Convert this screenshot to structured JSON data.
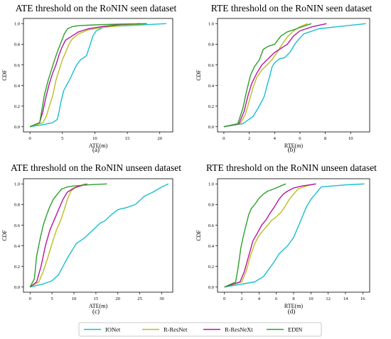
{
  "colors": {
    "IONet": "#17becf",
    "R-ResNet": "#bcbd22",
    "R-ResNeXt": "#b5179e",
    "EDIN": "#2ca02c"
  },
  "legend": {
    "placement": "bottom-center",
    "entries": [
      "IONet",
      "R-ResNet",
      "R-ResNeXt",
      "EDIN"
    ]
  },
  "chart_data": [
    {
      "type": "line",
      "title": "ATE threshold on the RoNIN seen dataset",
      "caption": "(a)",
      "xlabel": "ATE(m)",
      "ylabel": "CDF",
      "xlim": [
        -1,
        22
      ],
      "ylim": [
        -0.05,
        1.05
      ],
      "xticks": [
        0,
        5,
        10,
        15,
        20
      ],
      "yticks": [
        0.0,
        0.2,
        0.4,
        0.6,
        0.8,
        1.0
      ],
      "series": [
        {
          "name": "IONet",
          "x": [
            0,
            2,
            3.5,
            4.2,
            4.5,
            4.8,
            5.2,
            5.8,
            6.3,
            6.8,
            7.2,
            7.8,
            8.3,
            8.7,
            9.2,
            9.7,
            10.2,
            11.5,
            13,
            15,
            18,
            21
          ],
          "y": [
            0,
            0.02,
            0.04,
            0.07,
            0.15,
            0.25,
            0.35,
            0.42,
            0.48,
            0.55,
            0.6,
            0.65,
            0.67,
            0.69,
            0.78,
            0.88,
            0.93,
            0.97,
            0.975,
            0.98,
            0.99,
            1.0
          ]
        },
        {
          "name": "R-ResNet",
          "x": [
            0,
            2,
            2.5,
            3,
            3.5,
            4,
            4.5,
            5,
            5.5,
            6,
            6.5,
            7.5,
            9,
            11,
            14,
            18
          ],
          "y": [
            0,
            0.04,
            0.1,
            0.2,
            0.3,
            0.45,
            0.55,
            0.65,
            0.72,
            0.8,
            0.85,
            0.9,
            0.94,
            0.96,
            0.98,
            1.0
          ]
        },
        {
          "name": "R-ResNeXt",
          "x": [
            0,
            1.5,
            2,
            2.5,
            3,
            3.5,
            4,
            4.5,
            5,
            5.5,
            6.5,
            7.5,
            9,
            11,
            14,
            17
          ],
          "y": [
            0,
            0.04,
            0.15,
            0.3,
            0.42,
            0.52,
            0.6,
            0.7,
            0.78,
            0.84,
            0.88,
            0.92,
            0.95,
            0.97,
            0.99,
            1.0
          ]
        },
        {
          "name": "EDIN",
          "x": [
            0,
            1.5,
            1.8,
            2.2,
            2.8,
            3.3,
            3.8,
            4.3,
            4.8,
            5.3,
            5.8,
            6.5,
            7.5,
            9,
            11,
            14,
            18
          ],
          "y": [
            0,
            0.04,
            0.15,
            0.3,
            0.45,
            0.55,
            0.65,
            0.74,
            0.82,
            0.9,
            0.95,
            0.97,
            0.98,
            0.985,
            0.99,
            0.995,
            1.0
          ]
        }
      ]
    },
    {
      "type": "line",
      "title": "RTE threshold on the RoNIN seen dataset",
      "caption": "(b)",
      "xlabel": "RTE(m)",
      "ylabel": "CDF",
      "xlim": [
        -0.5,
        11.5
      ],
      "ylim": [
        -0.05,
        1.05
      ],
      "xticks": [
        0,
        2,
        4,
        6,
        8,
        10
      ],
      "yticks": [
        0.0,
        0.2,
        0.4,
        0.6,
        0.8,
        1.0
      ],
      "series": [
        {
          "name": "IONet",
          "x": [
            0,
            1.5,
            2.3,
            2.7,
            3,
            3.2,
            3.4,
            3.6,
            3.8,
            4,
            4.4,
            4.8,
            5.2,
            5.7,
            6.3,
            7.5,
            9,
            11.2
          ],
          "y": [
            0,
            0.03,
            0.1,
            0.18,
            0.25,
            0.3,
            0.4,
            0.48,
            0.58,
            0.62,
            0.66,
            0.67,
            0.72,
            0.82,
            0.9,
            0.95,
            0.97,
            1.0
          ]
        },
        {
          "name": "R-ResNet",
          "x": [
            0,
            1.3,
            1.7,
            2,
            2.3,
            2.6,
            3,
            3.4,
            3.8,
            4.2,
            4.6,
            5,
            5.5,
            6,
            6.6
          ],
          "y": [
            0,
            0.03,
            0.12,
            0.25,
            0.38,
            0.48,
            0.55,
            0.6,
            0.65,
            0.72,
            0.8,
            0.87,
            0.93,
            0.97,
            1.0
          ]
        },
        {
          "name": "R-ResNeXt",
          "x": [
            0,
            1.2,
            1.6,
            1.9,
            2.2,
            2.6,
            3,
            3.5,
            4,
            4.5,
            5,
            5.5,
            6,
            7,
            8.1
          ],
          "y": [
            0,
            0.03,
            0.15,
            0.3,
            0.42,
            0.52,
            0.6,
            0.66,
            0.72,
            0.76,
            0.8,
            0.88,
            0.93,
            0.97,
            1.0
          ]
        },
        {
          "name": "EDIN",
          "x": [
            0,
            1.1,
            1.5,
            1.8,
            2.1,
            2.4,
            2.8,
            3.1,
            3.5,
            4,
            4.5,
            5,
            5.5,
            6.2,
            6.9
          ],
          "y": [
            0,
            0.03,
            0.18,
            0.35,
            0.5,
            0.58,
            0.65,
            0.75,
            0.78,
            0.8,
            0.88,
            0.92,
            0.94,
            0.97,
            1.0
          ]
        }
      ]
    },
    {
      "type": "line",
      "title": "ATE threshold on the RoNIN unseen dataset",
      "caption": "(c)",
      "xlabel": "ATE(m)",
      "ylabel": "CDF",
      "xlim": [
        -1.5,
        32.5
      ],
      "ylim": [
        -0.05,
        1.05
      ],
      "xticks": [
        0,
        5,
        10,
        15,
        20,
        25,
        30
      ],
      "yticks": [
        0.0,
        0.2,
        0.4,
        0.6,
        0.8,
        1.0
      ],
      "series": [
        {
          "name": "IONet",
          "x": [
            0,
            3,
            5,
            6.5,
            7.5,
            8.5,
            9.5,
            10.5,
            11.5,
            12.5,
            13.5,
            15,
            16,
            17,
            18.5,
            20,
            22,
            24,
            26,
            28,
            30,
            31.5
          ],
          "y": [
            0,
            0.03,
            0.06,
            0.12,
            0.2,
            0.28,
            0.35,
            0.42,
            0.45,
            0.48,
            0.52,
            0.58,
            0.62,
            0.64,
            0.7,
            0.75,
            0.77,
            0.8,
            0.88,
            0.92,
            0.97,
            1.0
          ]
        },
        {
          "name": "R-ResNet",
          "x": [
            0,
            2,
            3,
            4,
            5,
            6,
            7,
            7.8,
            8.5,
            9.3,
            10.5,
            12.5
          ],
          "y": [
            0,
            0.05,
            0.15,
            0.28,
            0.42,
            0.55,
            0.65,
            0.75,
            0.85,
            0.93,
            0.97,
            1.0
          ]
        },
        {
          "name": "R-ResNeXt",
          "x": [
            0,
            1.5,
            2.5,
            3.5,
            4.5,
            5.5,
            6.5,
            7.5,
            8.5,
            10,
            11.5,
            13
          ],
          "y": [
            0,
            0.05,
            0.2,
            0.4,
            0.55,
            0.65,
            0.75,
            0.85,
            0.92,
            0.96,
            0.98,
            1.0
          ]
        },
        {
          "name": "EDIN",
          "x": [
            0,
            1,
            1.5,
            2.2,
            3,
            3.8,
            4.5,
            5.3,
            6.2,
            7.2,
            8.5,
            10,
            13,
            17.5
          ],
          "y": [
            0,
            0.08,
            0.3,
            0.45,
            0.6,
            0.7,
            0.78,
            0.85,
            0.9,
            0.95,
            0.97,
            0.98,
            0.99,
            1.0
          ]
        }
      ]
    },
    {
      "type": "line",
      "title": "RTE threshold on the RoNIN unseen dataset",
      "caption": "(d)",
      "xlabel": "RTE(m)",
      "ylabel": "CDF",
      "xlim": [
        -0.8,
        16.8
      ],
      "ylim": [
        -0.05,
        1.05
      ],
      "xticks": [
        0,
        2,
        4,
        6,
        8,
        10,
        12,
        14,
        16
      ],
      "yticks": [
        0.0,
        0.2,
        0.4,
        0.6,
        0.8,
        1.0
      ],
      "series": [
        {
          "name": "IONet",
          "x": [
            0,
            3.5,
            4.5,
            5.2,
            5.8,
            6.3,
            6.8,
            7.3,
            8,
            8.5,
            9,
            9.5,
            10,
            10.5,
            11.2,
            12.5,
            14,
            16.2
          ],
          "y": [
            0,
            0.05,
            0.1,
            0.18,
            0.25,
            0.32,
            0.36,
            0.4,
            0.48,
            0.58,
            0.68,
            0.78,
            0.85,
            0.9,
            0.97,
            0.98,
            0.99,
            1.0
          ]
        },
        {
          "name": "R-ResNet",
          "x": [
            0,
            2,
            2.5,
            3,
            3.5,
            4,
            4.5,
            5,
            5.5,
            6,
            6.5,
            7,
            7.5,
            8,
            8.5,
            9.5,
            10.5
          ],
          "y": [
            0,
            0.05,
            0.15,
            0.3,
            0.42,
            0.5,
            0.55,
            0.6,
            0.65,
            0.68,
            0.72,
            0.78,
            0.85,
            0.9,
            0.95,
            0.98,
            1.0
          ]
        },
        {
          "name": "R-ResNeXt",
          "x": [
            0,
            1.8,
            2.3,
            2.8,
            3.3,
            3.8,
            4.3,
            4.8,
            5.3,
            5.8,
            6.3,
            6.8,
            7.3,
            8,
            9,
            10.6
          ],
          "y": [
            0,
            0.05,
            0.15,
            0.3,
            0.45,
            0.52,
            0.6,
            0.65,
            0.72,
            0.78,
            0.85,
            0.9,
            0.93,
            0.96,
            0.98,
            1.0
          ]
        },
        {
          "name": "EDIN",
          "x": [
            0,
            1.3,
            1.6,
            1.9,
            2.2,
            2.5,
            2.8,
            3.1,
            3.5,
            4,
            4.5,
            5,
            5.7,
            6.5,
            7.1
          ],
          "y": [
            0,
            0.05,
            0.2,
            0.38,
            0.5,
            0.6,
            0.7,
            0.76,
            0.8,
            0.86,
            0.9,
            0.93,
            0.95,
            0.98,
            1.0
          ]
        }
      ]
    }
  ]
}
